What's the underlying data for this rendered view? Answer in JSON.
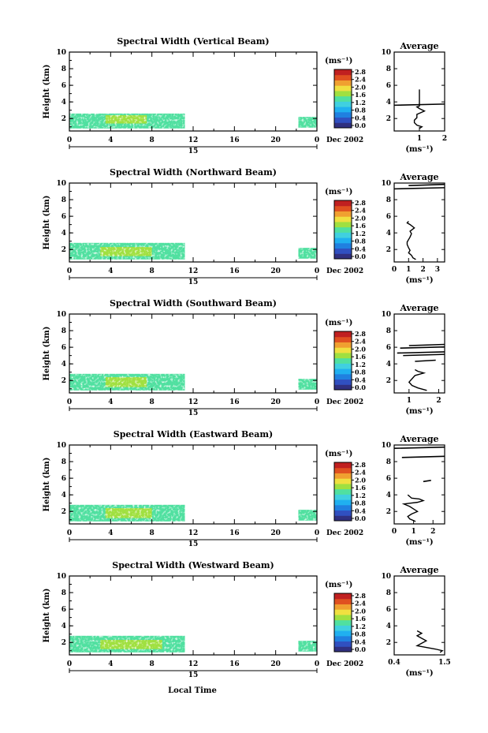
{
  "figure": {
    "date_label": "Dec 2002",
    "day_label": "15",
    "xlabel": "Local Time",
    "colorbar_unit": "(ms⁻¹)",
    "average_title": "Average",
    "average_unit": "(ms⁻¹)"
  },
  "colorbar": {
    "ticks": [
      "2.8",
      "2.4",
      "2.0",
      "1.6",
      "1.2",
      "0.8",
      "0.4",
      "0.0"
    ],
    "colors": [
      "#303080",
      "#3050c0",
      "#2080e0",
      "#20b0f0",
      "#40d0e0",
      "#50e0a0",
      "#a0e040",
      "#f0e040",
      "#f0a030",
      "#e05020",
      "#c02020"
    ]
  },
  "chart_data": [
    {
      "type": "heatmap",
      "title": "Spectral Width (Vertical Beam)",
      "ylabel": "Height (km)",
      "xlabel": "",
      "x_ticks": [
        "0",
        "4",
        "8",
        "12",
        "16",
        "20",
        "0"
      ],
      "y_ticks": [
        "2",
        "4",
        "6",
        "8",
        "10"
      ],
      "xlim": [
        0,
        24
      ],
      "ylim": [
        0.5,
        10
      ],
      "cells": [
        {
          "x0": 0,
          "x1": 11.2,
          "y0": 0.8,
          "y1": 2.6,
          "level": 0.45
        },
        {
          "x0": 3.5,
          "x1": 7.5,
          "y0": 1.4,
          "y1": 2.4,
          "level": 0.55
        },
        {
          "x0": 22.2,
          "x1": 24,
          "y0": 0.9,
          "y1": 2.2,
          "level": 0.45
        }
      ],
      "profile": {
        "x": [
          1.0,
          1.1,
          0.9,
          0.8,
          0.8,
          0.9,
          0.9,
          1.2,
          1.0,
          0.9,
          1.0,
          1.0,
          1.0,
          1.0,
          1.0
        ],
        "y": [
          0.8,
          1.0,
          1.2,
          1.5,
          1.8,
          2.1,
          2.5,
          2.9,
          3.2,
          3.4,
          3.5,
          5.0,
          5.2,
          5.4,
          5.5
        ],
        "ylim": [
          0.5,
          10
        ],
        "y_ticks": [
          "2",
          "4",
          "6",
          "8",
          "10"
        ],
        "xlim": [
          0,
          2
        ],
        "x_ticks": [
          "1",
          "2"
        ],
        "spikes": [
          {
            "y": 3.6,
            "x_from": 0,
            "x_to": 2
          }
        ]
      }
    },
    {
      "type": "heatmap",
      "title": "Spectral Width (Northward Beam)",
      "ylabel": "Height (km)",
      "xlabel": "",
      "x_ticks": [
        "0",
        "4",
        "8",
        "12",
        "16",
        "20",
        "0"
      ],
      "y_ticks": [
        "2",
        "4",
        "6",
        "8",
        "10"
      ],
      "xlim": [
        0,
        24
      ],
      "ylim": [
        0.5,
        10
      ],
      "cells": [
        {
          "x0": 0,
          "x1": 11.2,
          "y0": 0.8,
          "y1": 2.8,
          "level": 0.45
        },
        {
          "x0": 3.0,
          "x1": 8.0,
          "y0": 1.2,
          "y1": 2.3,
          "level": 0.55
        },
        {
          "x0": 22.2,
          "x1": 24,
          "y0": 0.9,
          "y1": 2.2,
          "level": 0.45
        }
      ],
      "profile": {
        "x": [
          1.5,
          1.3,
          1.2,
          1.0,
          1.1,
          1.0,
          0.9,
          0.9,
          1.0,
          1.1,
          1.2,
          1.1,
          1.4,
          1.1,
          0.9,
          1.0
        ],
        "y": [
          0.8,
          1.0,
          1.3,
          1.6,
          1.9,
          2.2,
          2.6,
          2.9,
          3.2,
          3.5,
          3.9,
          4.2,
          4.6,
          5.0,
          5.2,
          5.4
        ],
        "ylim": [
          0.5,
          10
        ],
        "y_ticks": [
          "2",
          "4",
          "6",
          "8",
          "10"
        ],
        "xlim": [
          0,
          3.5
        ],
        "x_ticks": [
          "0",
          "1",
          "2",
          "3"
        ],
        "spikes": [
          {
            "y": 9.3,
            "x_from": 0,
            "x_to": 3.5
          },
          {
            "y": 9.7,
            "x_from": 1.0,
            "x_to": 3.5
          }
        ]
      }
    },
    {
      "type": "heatmap",
      "title": "Spectral Width (Southward Beam)",
      "ylabel": "Height (km)",
      "xlabel": "",
      "x_ticks": [
        "0",
        "4",
        "8",
        "12",
        "16",
        "20",
        "0"
      ],
      "y_ticks": [
        "2",
        "4",
        "6",
        "8",
        "10"
      ],
      "xlim": [
        0,
        24
      ],
      "ylim": [
        0.5,
        10
      ],
      "cells": [
        {
          "x0": 0,
          "x1": 11.2,
          "y0": 0.8,
          "y1": 2.8,
          "level": 0.45
        },
        {
          "x0": 3.5,
          "x1": 7.5,
          "y0": 1.2,
          "y1": 2.4,
          "level": 0.55
        },
        {
          "x0": 22.2,
          "x1": 24,
          "y0": 0.9,
          "y1": 2.2,
          "level": 0.45
        }
      ],
      "profile": {
        "x": [
          1.6,
          1.3,
          1.1,
          1.0,
          1.1,
          1.2,
          1.5,
          1.3,
          1.2
        ],
        "y": [
          0.8,
          1.1,
          1.4,
          1.8,
          2.2,
          2.6,
          2.9,
          3.1,
          3.3
        ],
        "ylim": [
          0.5,
          10
        ],
        "y_ticks": [
          "2",
          "4",
          "6",
          "8",
          "10"
        ],
        "xlim": [
          0.5,
          2.2
        ],
        "x_ticks": [
          "1",
          "2"
        ],
        "spikes": [
          {
            "y": 4.3,
            "x_from": 1.2,
            "x_to": 1.9
          },
          {
            "y": 5.0,
            "x_from": 0.8,
            "x_to": 2.2
          },
          {
            "y": 5.3,
            "x_from": 0.6,
            "x_to": 2.2
          },
          {
            "y": 5.9,
            "x_from": 0.7,
            "x_to": 2.2
          },
          {
            "y": 6.2,
            "x_from": 1.0,
            "x_to": 2.2
          }
        ]
      }
    },
    {
      "type": "heatmap",
      "title": "Spectral Width (Eastward Beam)",
      "ylabel": "Height (km)",
      "xlabel": "",
      "x_ticks": [
        "0",
        "4",
        "8",
        "12",
        "16",
        "20",
        "0"
      ],
      "y_ticks": [
        "2",
        "4",
        "6",
        "8",
        "10"
      ],
      "xlim": [
        0,
        24
      ],
      "ylim": [
        0.5,
        10
      ],
      "cells": [
        {
          "x0": 0,
          "x1": 11.2,
          "y0": 0.8,
          "y1": 2.8,
          "level": 0.45
        },
        {
          "x0": 3.5,
          "x1": 8.0,
          "y0": 1.2,
          "y1": 2.4,
          "level": 0.55
        },
        {
          "x0": 22.2,
          "x1": 24,
          "y0": 0.9,
          "y1": 2.2,
          "level": 0.45
        }
      ],
      "profile": {
        "x": [
          1.1,
          0.8,
          0.7,
          0.9,
          1.2,
          1.0,
          0.8,
          0.5,
          1.2,
          1.5,
          1.3,
          0.9,
          0.8,
          0.7
        ],
        "y": [
          0.8,
          1.1,
          1.4,
          1.7,
          2.0,
          2.3,
          2.6,
          2.9,
          3.1,
          3.3,
          3.5,
          3.6,
          3.8,
          4.0
        ],
        "ylim": [
          0.5,
          10
        ],
        "y_ticks": [
          "2",
          "4",
          "6",
          "8",
          "10"
        ],
        "xlim": [
          0,
          2.6
        ],
        "x_ticks": [
          "0",
          "1",
          "2"
        ],
        "spikes": [
          {
            "y": 5.6,
            "x_from": 1.5,
            "x_to": 1.9
          },
          {
            "y": 8.5,
            "x_from": 0.4,
            "x_to": 2.6
          },
          {
            "y": 9.6,
            "x_from": 0,
            "x_to": 2.6
          }
        ]
      }
    },
    {
      "type": "heatmap",
      "title": "Spectral Width (Westward Beam)",
      "ylabel": "Height (km)",
      "xlabel": "Local Time",
      "x_ticks": [
        "0",
        "4",
        "8",
        "12",
        "16",
        "20",
        "0"
      ],
      "y_ticks": [
        "2",
        "4",
        "6",
        "8",
        "10"
      ],
      "xlim": [
        0,
        24
      ],
      "ylim": [
        0.5,
        10
      ],
      "cells": [
        {
          "x0": 0,
          "x1": 11.2,
          "y0": 0.8,
          "y1": 2.8,
          "level": 0.45
        },
        {
          "x0": 3.0,
          "x1": 9.0,
          "y0": 1.2,
          "y1": 2.3,
          "level": 0.6
        },
        {
          "x0": 22.2,
          "x1": 24,
          "y0": 0.9,
          "y1": 2.2,
          "level": 0.5
        }
      ],
      "profile": {
        "x": [
          1.4,
          1.45,
          1.3,
          1.1,
          0.9,
          1.0,
          1.1,
          1.0,
          0.9,
          1.0,
          0.9
        ],
        "y": [
          0.8,
          1.0,
          1.2,
          1.4,
          1.6,
          1.9,
          2.2,
          2.5,
          2.8,
          3.1,
          3.4
        ],
        "ylim": [
          0.5,
          10
        ],
        "y_ticks": [
          "2",
          "4",
          "6",
          "8",
          "10"
        ],
        "xlim": [
          0.4,
          1.5
        ],
        "x_ticks": [
          "0.4",
          "1.5"
        ],
        "spikes": []
      }
    }
  ]
}
